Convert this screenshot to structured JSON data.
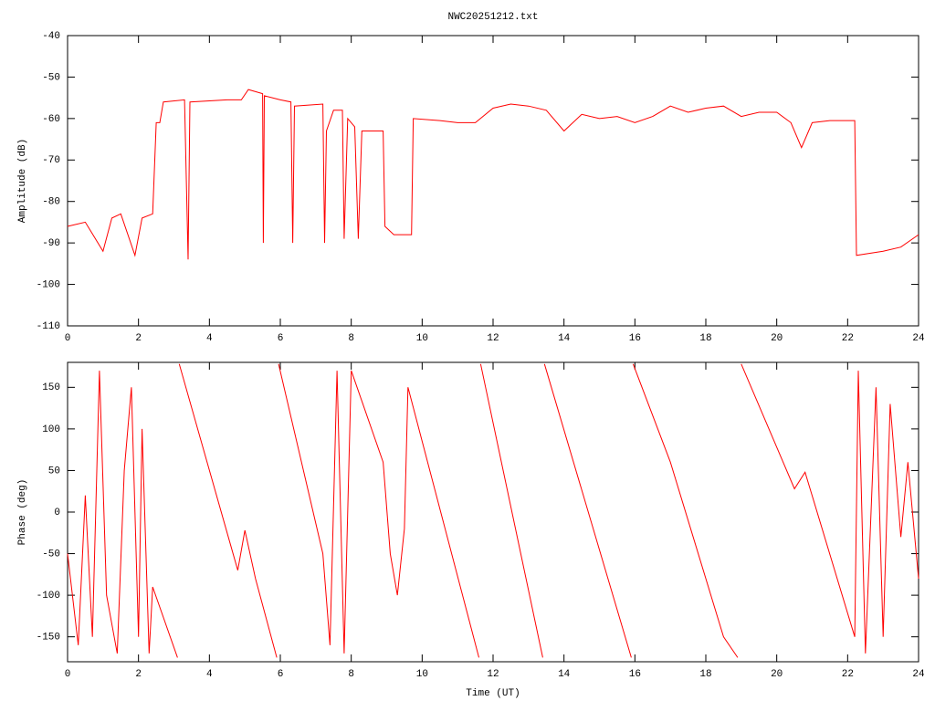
{
  "chart_data": [
    {
      "type": "line",
      "title": "NWC20251212.txt",
      "y_label": "Amplitude (dB)",
      "xlim": [
        0,
        24
      ],
      "xticks": [
        0,
        2,
        4,
        6,
        8,
        10,
        12,
        14,
        16,
        18,
        20,
        22,
        24
      ],
      "ylim": [
        -110,
        -40
      ],
      "yticks": [
        -110,
        -100,
        -90,
        -80,
        -70,
        -60,
        -50,
        -40
      ],
      "series": [
        {
          "color": "#ff0000",
          "x": [
            0,
            0.5,
            1,
            1.25,
            1.5,
            1.9,
            2.1,
            2.4,
            2.5,
            2.6,
            2.7,
            3.3,
            3.4,
            3.45,
            4.5,
            4.9,
            5.1,
            5.5,
            5.52,
            5.55,
            6,
            6.3,
            6.35,
            6.4,
            7.2,
            7.25,
            7.3,
            7.5,
            7.75,
            7.8,
            7.9,
            8.1,
            8.2,
            8.3,
            8.6,
            8.9,
            8.95,
            9.2,
            9.7,
            9.75,
            10.5,
            11,
            11.5,
            12,
            12.5,
            13,
            13.5,
            14,
            14.5,
            15,
            15.5,
            16,
            16.5,
            17,
            17.5,
            18,
            18.5,
            19,
            19.5,
            20,
            20.4,
            20.7,
            21,
            21.5,
            22.2,
            22.25,
            23,
            23.5,
            24
          ],
          "values": [
            -86,
            -85,
            -92,
            -84,
            -83,
            -93,
            -84,
            -83,
            -61,
            -61,
            -56,
            -55.5,
            -94,
            -56,
            -55.5,
            -55.5,
            -53,
            -54,
            -90,
            -54.5,
            -55.5,
            -56,
            -90,
            -57,
            -56.5,
            -90,
            -63,
            -58,
            -58,
            -89,
            -60,
            -62,
            -89,
            -63,
            -63,
            -63,
            -86,
            -88,
            -88,
            -60,
            -60.5,
            -61,
            -61,
            -57.5,
            -56.5,
            -57,
            -58,
            -63,
            -59,
            -60,
            -59.5,
            -61,
            -59.5,
            -57,
            -58.5,
            -57.5,
            -57,
            -59.5,
            -58.5,
            -58.5,
            -61,
            -67,
            -61,
            -60.5,
            -60.5,
            -93,
            -92,
            -91,
            -88
          ]
        }
      ]
    },
    {
      "type": "line",
      "x_label": "Time (UT)",
      "y_label": "Phase (deg)",
      "xlim": [
        0,
        24
      ],
      "xticks": [
        0,
        2,
        4,
        6,
        8,
        10,
        12,
        14,
        16,
        18,
        20,
        22,
        24
      ],
      "ylim": [
        -180,
        180
      ],
      "yticks": [
        -150,
        -100,
        -50,
        0,
        50,
        100,
        150
      ],
      "series": [
        {
          "color": "#ff0000",
          "x": [
            0,
            0.3,
            0.5,
            0.7,
            0.9,
            1.1,
            1.4,
            1.6,
            1.8,
            2,
            2.1,
            2.3,
            2.4,
            3.1,
            3.1,
            3.15,
            4.8,
            5,
            5.3,
            5.9,
            5.9,
            5.95,
            7.2,
            7.4,
            7.6,
            7.8,
            8,
            8.9,
            9.1,
            9.3,
            9.5,
            9.6,
            11.6,
            11.6,
            11.65,
            13.4,
            13.4,
            13.45,
            15.9,
            15.9,
            15.95,
            17,
            18,
            18.5,
            18.9,
            18.9,
            19,
            20.5,
            20.8,
            22.2,
            22.3,
            22.5,
            22.8,
            23,
            23.2,
            23.5,
            23.7,
            24
          ],
          "values": [
            -50,
            -160,
            20,
            -150,
            170,
            -100,
            -170,
            50,
            150,
            -150,
            100,
            -170,
            -90,
            -175,
            null,
            178,
            -70,
            -22,
            -80,
            -175,
            null,
            178,
            -50,
            -160,
            170,
            -170,
            170,
            60,
            -50,
            -100,
            -20,
            150,
            -175,
            null,
            178,
            -175,
            null,
            178,
            -175,
            null,
            178,
            60,
            -80,
            -150,
            -175,
            null,
            178,
            28,
            48,
            -150,
            170,
            -170,
            150,
            -150,
            130,
            -30,
            60,
            -80
          ]
        }
      ]
    }
  ]
}
